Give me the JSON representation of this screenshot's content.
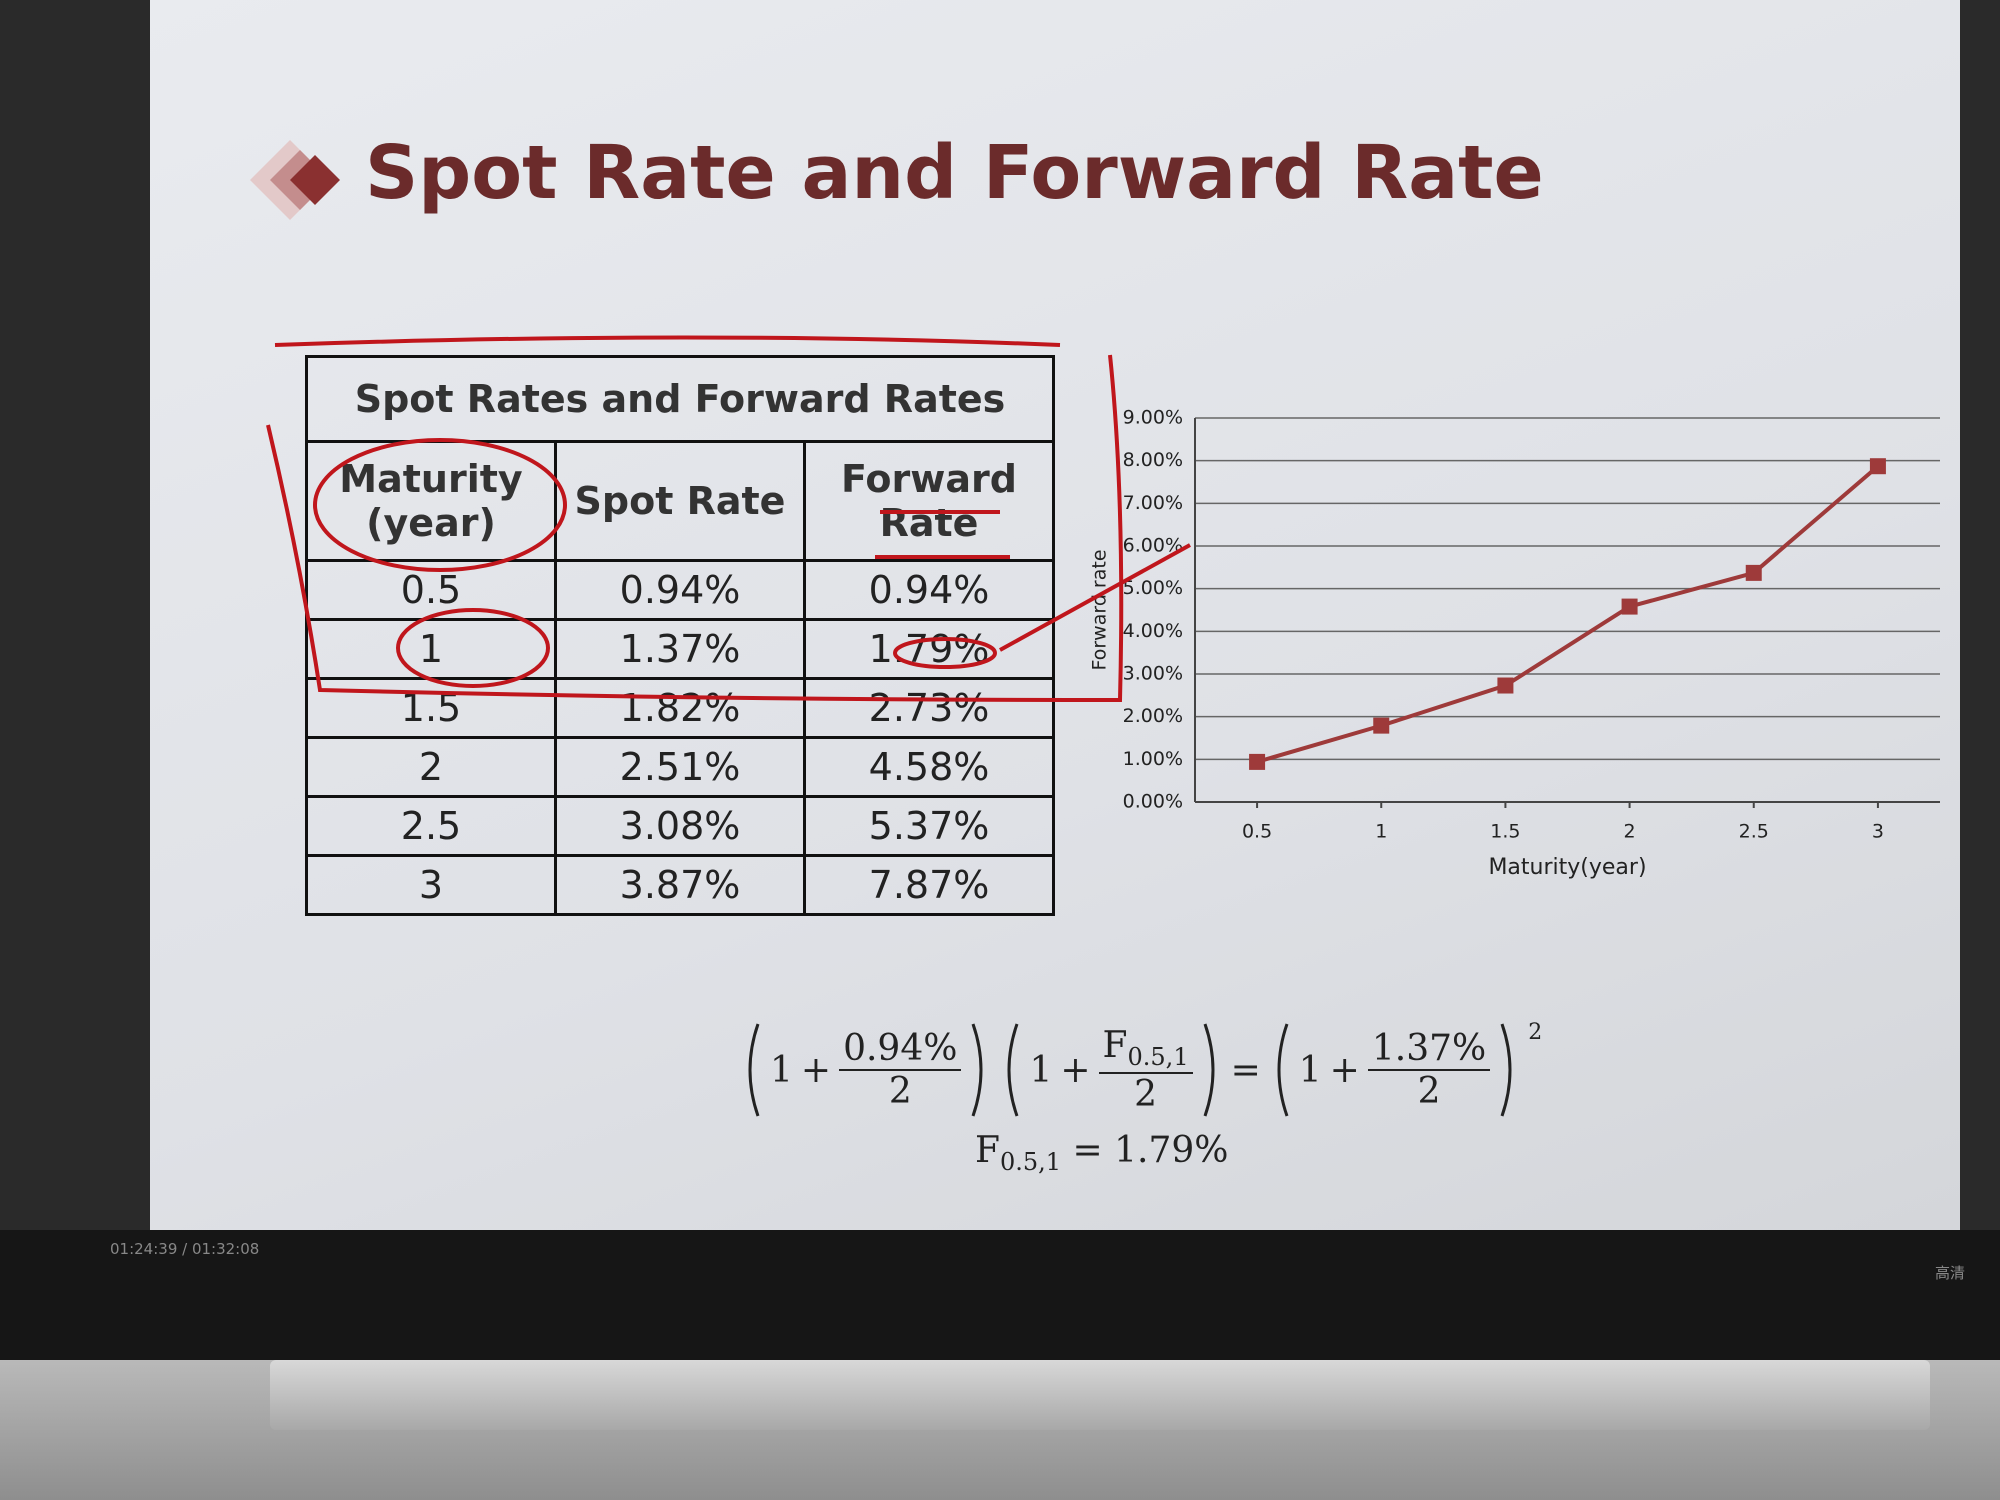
{
  "slide_title": "Spot Rate and Forward Rate",
  "table": {
    "title": "Spot Rates and Forward Rates",
    "header": [
      "Maturity (year)",
      "Spot Rate",
      "Forward Rate"
    ],
    "rows": [
      [
        "0.5",
        "0.94%",
        "0.94%"
      ],
      [
        "1",
        "1.37%",
        "1.79%"
      ],
      [
        "1.5",
        "1.82%",
        "2.73%"
      ],
      [
        "2",
        "2.51%",
        "4.58%"
      ],
      [
        "2.5",
        "3.08%",
        "5.37%"
      ],
      [
        "3",
        "3.87%",
        "7.87%"
      ]
    ]
  },
  "chart_data": {
    "type": "line",
    "x": [
      0.5,
      1,
      1.5,
      2,
      2.5,
      3
    ],
    "values": [
      0.94,
      1.79,
      2.73,
      4.58,
      5.37,
      7.87
    ],
    "color": "#9e3a3a",
    "x_label": "Maturity(year)",
    "y_label": "Forward rate",
    "xlim": [
      0.25,
      3.25
    ],
    "xticks": [
      0.5,
      1,
      1.5,
      2,
      2.5,
      3
    ],
    "ylim": [
      0,
      9
    ],
    "yticks": [
      {
        "value": 0,
        "label": "0.00%"
      },
      {
        "value": 1,
        "label": "1.00%"
      },
      {
        "value": 2,
        "label": "2.00%"
      },
      {
        "value": 3,
        "label": "3.00%"
      },
      {
        "value": 4,
        "label": "4.00%"
      },
      {
        "value": 5,
        "label": "5.00%"
      },
      {
        "value": 6,
        "label": "6.00%"
      },
      {
        "value": 7,
        "label": "7.00%"
      },
      {
        "value": 8,
        "label": "8.00%"
      },
      {
        "value": 9,
        "label": "9.00%"
      }
    ],
    "grid": true
  },
  "formula": {
    "one": "1",
    "plus": "+",
    "equals": "=",
    "term1_num": "0.94%",
    "term1_den": "2",
    "f_symbol": "F",
    "f_sub": "0.5,1",
    "term2_den": "2",
    "term3_num": "1.37%",
    "term3_den": "2",
    "exponent": "2",
    "result": "1.79%"
  },
  "player": {
    "time": "01:24:39 / 01:32:08",
    "quality": "高清"
  }
}
